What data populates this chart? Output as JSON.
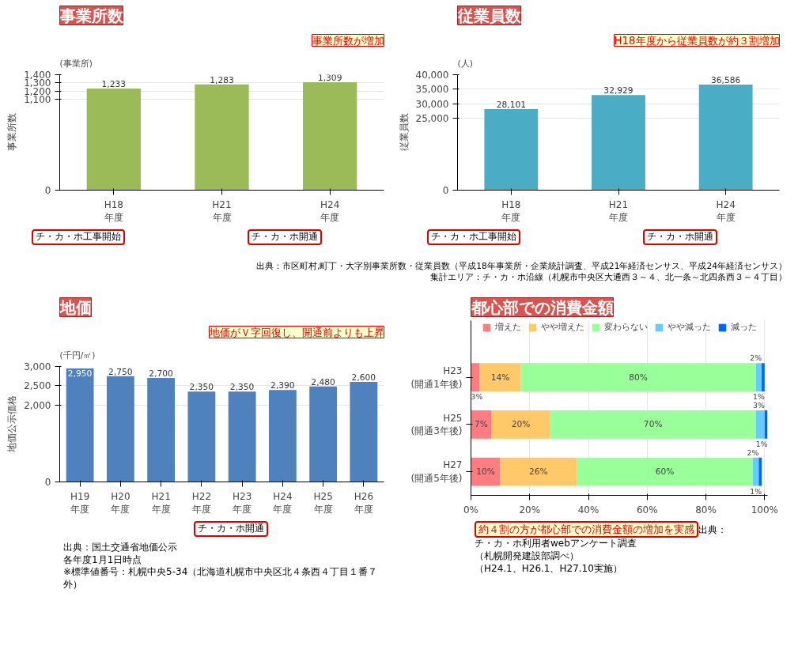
{
  "chart_data": [
    {
      "type": "bar",
      "title": "事業所数",
      "subtitle": "(事業所)",
      "ylabel": "事業所数",
      "categories": [
        "H18\n年度",
        "H21\n年度",
        "H24\n年度"
      ],
      "values": [
        1233,
        1283,
        1309
      ],
      "value_labels": [
        "1,233",
        "1,283",
        "1,309"
      ],
      "color": "#9bbb59",
      "ylim": [
        0,
        1400
      ],
      "yticks": [
        0,
        {
          "value": 1100,
          "label": "1,100"
        },
        {
          "value": 1200,
          "label": "1,200"
        },
        {
          "value": 1300,
          "label": "1,300"
        },
        {
          "value": 1400,
          "label": "1,400"
        }
      ],
      "grid": "y",
      "annotations": [
        "事業所数が増加",
        "チ・カ・ホ工事開始",
        "チ・カ・ホ開通"
      ]
    },
    {
      "type": "bar",
      "title": "従業員数",
      "subtitle": "(人)",
      "ylabel": "従業員数",
      "categories": [
        "H18\n年度",
        "H21\n年度",
        "H24\n年度"
      ],
      "values": [
        28101,
        32929,
        36586
      ],
      "value_labels": [
        "28,101",
        "32,929",
        "36,586"
      ],
      "color": "#4bacc6",
      "ylim": [
        0,
        40000
      ],
      "yticks": [
        0,
        {
          "value": 25000,
          "label": "25,000"
        },
        {
          "value": 30000,
          "label": "30,000"
        },
        {
          "value": 35000,
          "label": "35,000"
        },
        {
          "value": 40000,
          "label": "40,000"
        }
      ],
      "grid": "y",
      "annotations": [
        "H18年度から従業員数が約３割増加",
        "チ・カ・ホ工事開始",
        "チ・カ・ホ開通",
        "出典：市区町村,町丁・大字別事業所数・従業員数（平成18年事業所・企業統計調査、平成21年経済センサス、平成24年経済センサス）",
        "集計エリア：チ・カ・ホ沿線（札幌市中央区大通西３～４、北一条～北四条西３～４丁目）"
      ]
    },
    {
      "type": "bar",
      "title": "地価",
      "subtitle": "(千円/㎡)",
      "ylabel": "地価公示価格",
      "categories": [
        "H19\n年度",
        "H20\n年度",
        "H21\n年度",
        "H22\n年度",
        "H23\n年度",
        "H24\n年度",
        "H25\n年度",
        "H26\n年度"
      ],
      "values": [
        2950,
        2750,
        2700,
        2350,
        2350,
        2390,
        2480,
        2600
      ],
      "value_labels": [
        "2,950",
        "2,750",
        "2,700",
        "2,350",
        "2,350",
        "2,390",
        "2,480",
        "2,600"
      ],
      "color": "#4f81bd",
      "ylim": [
        0,
        3000
      ],
      "yticks": [
        0,
        {
          "value": 2000,
          "label": "2,000"
        },
        {
          "value": 2500,
          "label": "2,500"
        },
        {
          "value": 3000,
          "label": "3,000"
        }
      ],
      "grid": "y",
      "annotations": [
        "地価がＶ字回復し、開通前よりも上昇",
        "チ・カ・ホ開通",
        "出典：国土交通省地価公示",
        "各年度1月1日時点",
        "※標準値番号：札幌中央5-34（北海道札幌市中央区北４条西４丁目１番７外）"
      ]
    },
    {
      "type": "bar",
      "title": "都心部での消費金額",
      "orientation": "horizontal",
      "stacked": true,
      "categories": [
        "H23\n(開通1年後)",
        "H25\n(開通3年後)",
        "H27\n(開通5年後)"
      ],
      "series": [
        {
          "name": "増えた",
          "color": "#ff7c80",
          "values": [
            3,
            7,
            10
          ],
          "value_labels": [
            "3%",
            "7%",
            "10%"
          ]
        },
        {
          "name": "やや増えた",
          "color": "#ffc869",
          "values": [
            14,
            20,
            26
          ],
          "value_labels": [
            "14%",
            "20%",
            "26%"
          ]
        },
        {
          "name": "変わらない",
          "color": "#99ff99",
          "values": [
            80,
            70,
            60
          ],
          "value_labels": [
            "80%",
            "70%",
            "60%"
          ]
        },
        {
          "name": "やや減った",
          "color": "#66ccff",
          "values": [
            2,
            3,
            2
          ],
          "value_labels": [
            "2%",
            "3%",
            "2%"
          ]
        },
        {
          "name": "減った",
          "color": "#0066ff",
          "values": [
            1,
            1,
            1
          ],
          "value_labels": [
            "1%",
            "1%",
            "1%"
          ]
        }
      ],
      "xlim": [
        0,
        101
      ],
      "xticks": [
        {
          "value": 0,
          "label": "0%"
        },
        {
          "value": 20,
          "label": "20%"
        },
        {
          "value": 40,
          "label": "40%"
        },
        {
          "value": 60,
          "label": "60%"
        },
        {
          "value": 80,
          "label": "80%"
        },
        {
          "value": 100,
          "label": "100%"
        }
      ],
      "grid": "x",
      "legend": "top",
      "annotations": [
        "約４割の方が都心部での消費金額の増加を実感",
        "出典：",
        "チ・カ・ホ利用者webアンケート調査",
        "（札幌開発建設部調べ）",
        "（H24.1、H26.1、H27.10実施）"
      ]
    }
  ]
}
